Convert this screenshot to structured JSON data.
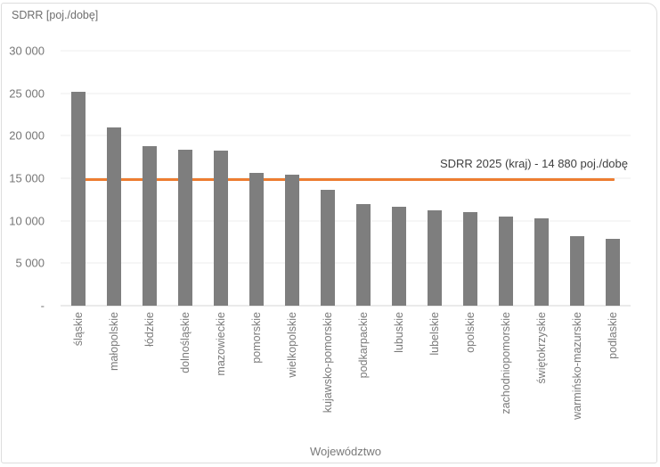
{
  "chart_data": {
    "type": "bar",
    "title": "",
    "ylabel": "SDRR [poj./dobę]",
    "xlabel": "Województwo",
    "ylim": [
      0,
      30000
    ],
    "yticks": [
      30000,
      25000,
      20000,
      15000,
      10000,
      5000,
      0
    ],
    "ytick_labels": [
      "30 000",
      "25 000",
      "20 000",
      "15 000",
      "10 000",
      "5 000",
      "-"
    ],
    "grid": true,
    "legend": "none",
    "bar_color": "#7E7E7E",
    "categories": [
      "śląskie",
      "małopolskie",
      "łódzkie",
      "dolnośląskie",
      "mazowieckie",
      "pomorskie",
      "wielkopolskie",
      "kujawsko-pomorskie",
      "podkarpackie",
      "lubuskie",
      "lubelskie",
      "opolskie",
      "zachodniopomorskie",
      "świętokrzyskie",
      "warmińsko-mazurskie",
      "podlaskie"
    ],
    "values": [
      25200,
      21000,
      18800,
      18400,
      18300,
      15600,
      15400,
      13600,
      12000,
      11600,
      11200,
      11000,
      10500,
      10300,
      8200,
      7900
    ],
    "reference_line": {
      "label": "SDRR 2025 (kraj) - 14 880 poj./dobę",
      "value": 14880,
      "color": "#ED7D31"
    }
  }
}
